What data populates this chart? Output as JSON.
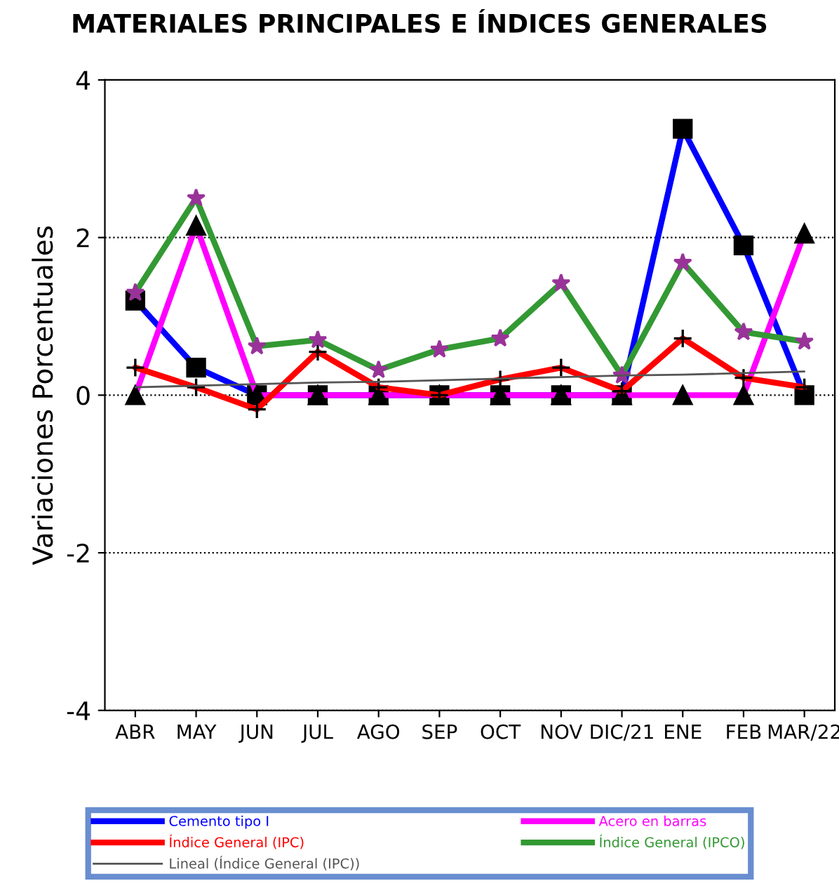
{
  "chart_data": {
    "type": "line",
    "title": "MATERIALES PRINCIPALES E ÍNDICES GENERALES",
    "ylabel": "Variaciones Porcentuales",
    "categories": [
      "ABR",
      "MAY",
      "JUN",
      "JUL",
      "AGO",
      "SEP",
      "OCT",
      "NOV",
      "DIC/21",
      "ENE",
      "FEB",
      "MAR/22"
    ],
    "ylim": [
      -4,
      4
    ],
    "yticks": [
      -4,
      -2,
      0,
      2,
      4
    ],
    "grid": "y",
    "legend": "bottom",
    "series": [
      {
        "name": "Cemento tipo I",
        "color": "#0000ff",
        "marker": "square",
        "values": [
          1.2,
          0.35,
          0,
          0,
          0,
          0,
          0,
          0,
          0,
          3.38,
          1.9,
          0
        ]
      },
      {
        "name": "Acero en barras",
        "color": "#ff00ff",
        "marker": "triangle",
        "values": [
          0,
          2.15,
          0,
          0,
          0,
          0,
          0,
          0,
          0,
          0,
          0,
          2.05
        ]
      },
      {
        "name": "Índice General (IPC)",
        "color": "#ff0000",
        "marker": "cross",
        "values": [
          0.35,
          0.1,
          -0.18,
          0.55,
          0.1,
          0,
          0.2,
          0.35,
          0.05,
          0.72,
          0.22,
          0.1
        ]
      },
      {
        "name": "Índice General (IPCO)",
        "color": "#339933",
        "marker": "star",
        "values": [
          1.3,
          2.5,
          0.62,
          0.7,
          0.32,
          0.58,
          0.72,
          1.42,
          0.25,
          1.68,
          0.8,
          0.68
        ]
      },
      {
        "name": "Lineal (Índice General (IPC))",
        "color": "#555555",
        "marker": "none",
        "values": [
          0.1,
          0.12,
          0.14,
          0.16,
          0.17,
          0.19,
          0.21,
          0.23,
          0.25,
          0.26,
          0.28,
          0.3
        ]
      }
    ]
  }
}
